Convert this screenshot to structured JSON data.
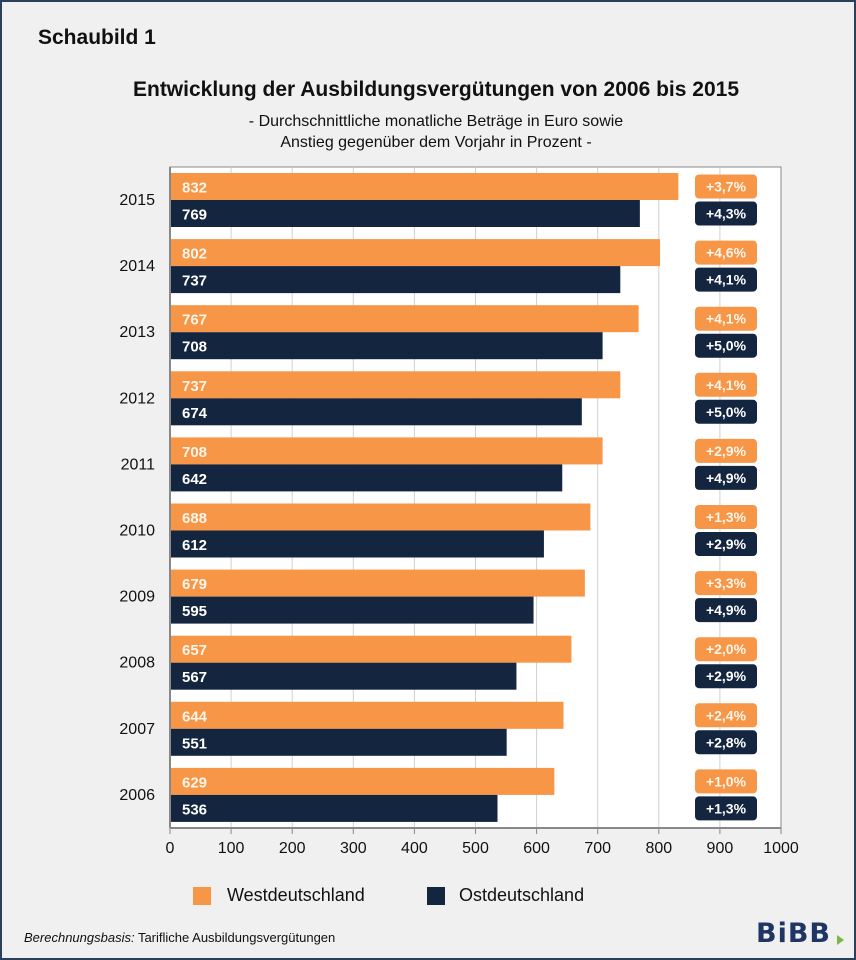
{
  "figure_label": "Schaubild 1",
  "footnote": {
    "prefix": "Berechnungsbasis:",
    "text": " Tarifliche Ausbildungsvergütungen"
  },
  "logo": {
    "text": "BiBB",
    "arrow_color": "#7ab648"
  },
  "colors": {
    "west": "#f79646",
    "east": "#14253f",
    "frame": "#2b3f5c",
    "grid": "#d0d0d0"
  },
  "chart_data": {
    "type": "bar",
    "orientation": "horizontal",
    "title": "Entwicklung der Ausbildungsvergütungen von 2006 bis 2015",
    "subtitle_lines": [
      "- Durchschnittliche monatliche Beträge in Euro sowie",
      "Anstieg gegenüber dem Vorjahr in Prozent -"
    ],
    "xlabel": "",
    "ylabel": "",
    "xlim": [
      0,
      1000
    ],
    "xticks": [
      0,
      100,
      200,
      300,
      400,
      500,
      600,
      700,
      800,
      900,
      1000
    ],
    "grid": true,
    "legend_position": "bottom",
    "categories": [
      "2015",
      "2014",
      "2013",
      "2012",
      "2011",
      "2010",
      "2009",
      "2008",
      "2007",
      "2006"
    ],
    "series": [
      {
        "name": "Westdeutschland",
        "values": [
          832,
          802,
          767,
          737,
          708,
          688,
          679,
          657,
          644,
          629
        ],
        "change_labels": [
          "+3,7%",
          "+4,6%",
          "+4,1%",
          "+4,1%",
          "+2,9%",
          "+1,3%",
          "+3,3%",
          "+2,0%",
          "+2,4%",
          "+1,0%"
        ]
      },
      {
        "name": "Ostdeutschland",
        "values": [
          769,
          737,
          708,
          674,
          642,
          612,
          595,
          567,
          551,
          536
        ],
        "change_labels": [
          "+4,3%",
          "+4,1%",
          "+5,0%",
          "+5,0%",
          "+4,9%",
          "+2,9%",
          "+4,9%",
          "+2,9%",
          "+2,8%",
          "+1,3%"
        ]
      }
    ]
  }
}
